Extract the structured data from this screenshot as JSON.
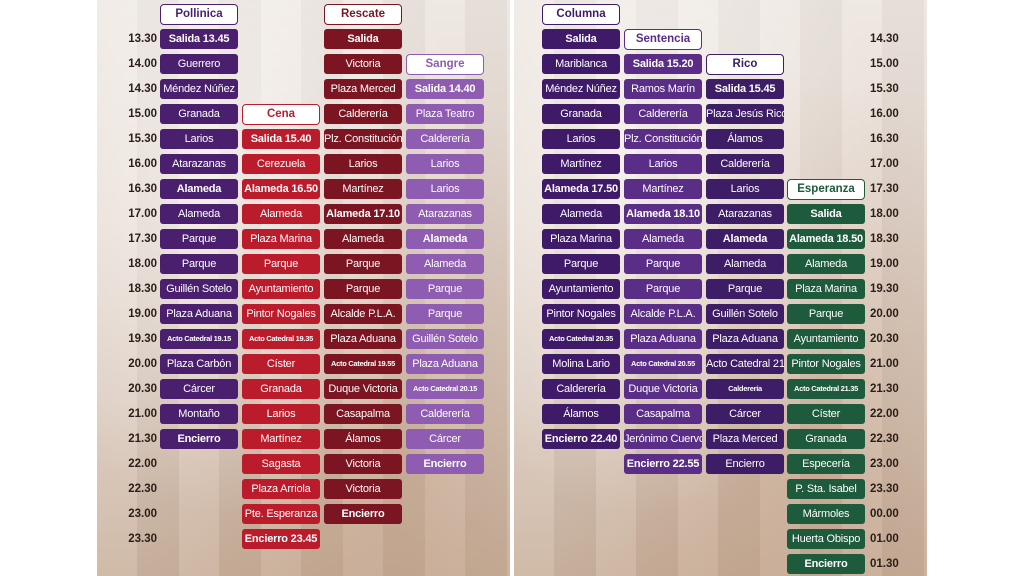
{
  "left": {
    "times": [
      "13.30",
      "14.00",
      "14.30",
      "15.00",
      "15.30",
      "16.00",
      "16.30",
      "17.00",
      "17.30",
      "18.00",
      "18.30",
      "19.00",
      "19.30",
      "20.00",
      "20.30",
      "21.00",
      "21.30",
      "22.00",
      "22.30",
      "23.00",
      "23.30"
    ],
    "columns": [
      {
        "name": "Pollinica",
        "color": "#4a1f6e",
        "cls": "pol",
        "start": 0,
        "bold": [
          0,
          6,
          16
        ],
        "small": [
          12
        ],
        "cells": [
          "Salida 13.45",
          "Guerrero",
          "Méndez Núñez",
          "Granada",
          "Larios",
          "Atarazanas",
          "Alameda",
          "Alameda",
          "Parque",
          "Parque",
          "Guillén Sotelo",
          "Plaza Aduana",
          "Acto Catedral 19.15",
          "Plaza Carbón",
          "Cárcer",
          "Montaño",
          "Encierro"
        ]
      },
      {
        "name": "Cena",
        "color": "#bb1c2c",
        "cls": "cen",
        "start": 4,
        "bold": [
          0,
          2,
          16
        ],
        "small": [
          8
        ],
        "cells": [
          "Salida 15.40",
          "Cerezuela",
          "Alameda 16.50",
          "Alameda",
          "Plaza Marina",
          "Parque",
          "Ayuntamiento",
          "Pintor Nogales",
          "Acto Catedral 19.35",
          "Císter",
          "Granada",
          "Larios",
          "Martínez",
          "Sagasta",
          "Plaza Arriola",
          "Pte. Esperanza",
          "Encierro 23.45"
        ]
      },
      {
        "name": "Rescate",
        "color": "#7b1521",
        "cls": "res",
        "start": 0,
        "bold": [
          0,
          7,
          19
        ],
        "small": [
          13
        ],
        "cells": [
          "Salida",
          "Victoria",
          "Plaza Merced",
          "Calderería",
          "Plz. Constitución",
          "Larios",
          "Martínez",
          "Alameda 17.10",
          "Alameda",
          "Parque",
          "Parque",
          "Alcalde P.L.A.",
          "Plaza Aduana",
          "Acto Catedral 19.55",
          "Duque Victoria",
          "Casapalma",
          "Álamos",
          "Victoria",
          "Victoria",
          "Encierro"
        ]
      },
      {
        "name": "Sangre",
        "color": "#8e5cb0",
        "cls": "san",
        "start": 2,
        "bold": [
          0,
          6,
          15
        ],
        "small": [
          12
        ],
        "cells": [
          "Salida 14.40",
          "Plaza Teatro",
          "Calderería",
          "Larios",
          "Larios",
          "Atarazanas",
          "Alameda",
          "Alameda",
          "Parque",
          "Parque",
          "Guillén Sotelo",
          "Plaza Aduana",
          "Acto Catedral 20.15",
          "Calderería",
          "Cárcer",
          "Encierro"
        ]
      }
    ]
  },
  "right": {
    "times": [
      "14.30",
      "15.00",
      "15.30",
      "16.00",
      "16.30",
      "17.00",
      "17.30",
      "18.00",
      "18.30",
      "19.00",
      "19.30",
      "20.00",
      "20.30",
      "21.00",
      "21.30",
      "22.00",
      "22.30",
      "23.00",
      "23.30",
      "00.00",
      "01.00",
      "01.30"
    ],
    "columns": [
      {
        "name": "Columna",
        "color": "#3f1a69",
        "cls": "col",
        "start": 0,
        "bold": [
          0,
          6,
          16
        ],
        "small": [
          12
        ],
        "cells": [
          "Salida",
          "Mariblanca",
          "Méndez Núñez",
          "Granada",
          "Larios",
          "Martínez",
          "Alameda 17.50",
          "Alameda",
          "Plaza Marina",
          "Parque",
          "Ayuntamiento",
          "Pintor Nogales",
          "Acto Catedral 20.35",
          "Molina Lario",
          "Calderería",
          "Álamos",
          "Encierro 22.40"
        ]
      },
      {
        "name": "Sentencia",
        "color": "#5a2d87",
        "cls": "sen",
        "start": 1,
        "bold": [
          0,
          6,
          16
        ],
        "small": [
          12
        ],
        "cells": [
          "Salida 15.20",
          "Ramos Marín",
          "Calderería",
          "Plz. Constitución",
          "Larios",
          "Martínez",
          "Alameda 18.10",
          "Alameda",
          "Parque",
          "Parque",
          "Alcalde P.L.A.",
          "Plaza Aduana",
          "Acto Catedral 20.55",
          "Duque Victoria",
          "Casapalma",
          "Jerónimo Cuervo",
          "Encierro 22.55"
        ]
      },
      {
        "name": "Rico",
        "color": "#3d1d66",
        "cls": "ric",
        "start": 2,
        "bold": [
          0,
          6,
          16
        ],
        "small": [
          12
        ],
        "cells": [
          "Salida 15.45",
          "Plaza Jesús Rico",
          "Álamos",
          "Calderería",
          "Larios",
          "Atarazanas",
          "Alameda",
          "Alameda",
          "Parque",
          "Guillén Sotelo",
          "Plaza Aduana",
          "Acto Catedral 21.15",
          "Calderería",
          "Cárcer",
          "Plaza Merced",
          "Encierro"
        ]
      },
      {
        "name": "Esperanza",
        "color": "#1e5a3c",
        "cls": "esp",
        "start": 7,
        "bold": [
          0,
          1,
          14
        ],
        "small": [
          7
        ],
        "cells": [
          "Salida",
          "Alameda 18.50",
          "Alameda",
          "Plaza Marina",
          "Parque",
          "Ayuntamiento",
          "Pintor Nogales",
          "Acto Catedral 21.35",
          "Císter",
          "Granada",
          "Especería",
          "P. Sta. Isabel",
          "Mármoles",
          "Huerta Obispo",
          "Encierro"
        ]
      }
    ]
  }
}
